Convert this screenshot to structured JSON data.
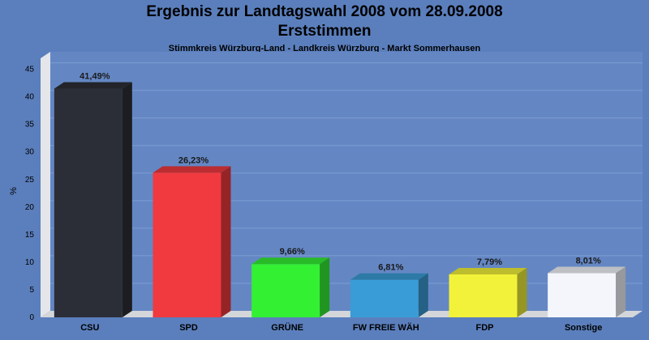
{
  "chart_data": {
    "type": "bar",
    "title": "Ergebnis zur Landtagswahl 2008 vom 28.09.2008",
    "title_line2": "Erststimmen",
    "subtitle": "Stimmkreis Würzburg-Land - Landkreis Würzburg - Markt Sommerhausen",
    "ylabel": "%",
    "ylim": [
      0,
      47
    ],
    "yticks": [
      0,
      5,
      10,
      15,
      20,
      25,
      30,
      35,
      40,
      45
    ],
    "grid": true,
    "categories": [
      "CSU",
      "SPD",
      "GRÜNE",
      "FW FREIE WÄH",
      "FDP",
      "Sonstige"
    ],
    "values": [
      41.49,
      26.23,
      9.66,
      6.81,
      7.79,
      8.01
    ],
    "value_labels": [
      "41,49%",
      "26,23%",
      "9,66%",
      "6,81%",
      "7,79%",
      "8,01%"
    ],
    "colors": [
      "#2b2e36",
      "#f03a3f",
      "#33f033",
      "#3a9cd6",
      "#f2f23a",
      "#f4f6fb"
    ],
    "background": "#5b7fbd"
  }
}
